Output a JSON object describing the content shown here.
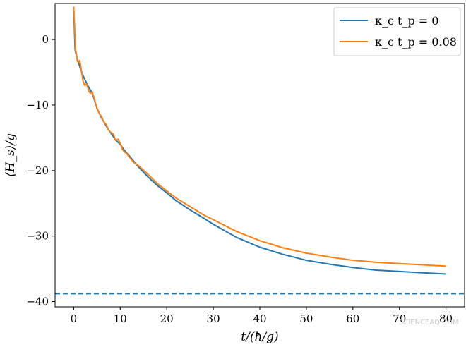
{
  "chart_data": {
    "type": "line",
    "title": "",
    "xlabel": "t/(ħ/g)",
    "ylabel": "⟨H_s⟩/g",
    "xlim": [
      -4,
      84
    ],
    "ylim": [
      -40.8,
      5.5
    ],
    "xticks": [
      0,
      10,
      20,
      30,
      40,
      50,
      60,
      70,
      80
    ],
    "yticks": [
      0,
      -10,
      -20,
      -30,
      -40
    ],
    "xtick_labels": [
      "0",
      "10",
      "20",
      "30",
      "40",
      "50",
      "60",
      "70",
      "80"
    ],
    "ytick_labels": [
      "0",
      "−10",
      "−20",
      "−30",
      "−40"
    ],
    "grid": false,
    "legend_position": "top-right",
    "series": [
      {
        "name": "κ_c t_p = 0",
        "color": "#1f77b4",
        "style": "solid",
        "x": [
          0,
          0.3,
          0.6,
          1,
          1.5,
          2,
          3,
          4,
          5,
          6,
          7,
          8,
          9,
          10,
          11,
          12,
          14,
          16,
          18,
          20,
          22,
          25,
          28,
          30,
          35,
          40,
          45,
          50,
          55,
          60,
          65,
          70,
          75,
          80
        ],
        "y": [
          5,
          -1.5,
          -2.5,
          -3.5,
          -4.5,
          -5.5,
          -7,
          -8.2,
          -10.5,
          -12,
          -13.2,
          -14.3,
          -15.3,
          -16,
          -17,
          -17.8,
          -19.5,
          -21,
          -22.3,
          -23.4,
          -24.6,
          -26,
          -27.3,
          -28.2,
          -30.2,
          -31.7,
          -32.8,
          -33.7,
          -34.3,
          -34.8,
          -35.2,
          -35.4,
          -35.6,
          -35.8
        ]
      },
      {
        "name": "κ_c t_p = 0.08",
        "color": "#ff7f0e",
        "style": "solid",
        "x": [
          0,
          0.2,
          0.4,
          0.6,
          0.8,
          1,
          1.3,
          1.6,
          2,
          2.4,
          2.8,
          3.2,
          3.6,
          4,
          4.5,
          5,
          5.5,
          6,
          6.5,
          7,
          7.5,
          8,
          8.5,
          9,
          9.5,
          10,
          10.5,
          11,
          11.5,
          12,
          13,
          14,
          16,
          18,
          20,
          22,
          25,
          28,
          30,
          35,
          40,
          45,
          50,
          55,
          60,
          65,
          70,
          75,
          80
        ],
        "y": [
          5,
          2,
          -1.5,
          -2.3,
          -3.3,
          -3.5,
          -3.2,
          -4.5,
          -6.3,
          -7,
          -6.8,
          -7.8,
          -8.2,
          -8,
          -9.2,
          -10.5,
          -11.3,
          -11.8,
          -12.6,
          -13,
          -13.8,
          -14.2,
          -14.4,
          -15.4,
          -15.2,
          -15.8,
          -16.8,
          -17.2,
          -17.5,
          -18,
          -18.8,
          -19.3,
          -20.6,
          -22,
          -23.1,
          -24.2,
          -25.5,
          -26.8,
          -27.5,
          -29.3,
          -30.7,
          -31.8,
          -32.6,
          -33.2,
          -33.7,
          -34,
          -34.2,
          -34.4,
          -34.6
        ]
      },
      {
        "name": "",
        "color": "#1f77b4",
        "style": "dashed",
        "x": [
          -4,
          84
        ],
        "y": [
          -38.8,
          -38.8
        ]
      }
    ]
  },
  "watermark": "SCIENCEAQ.COM"
}
